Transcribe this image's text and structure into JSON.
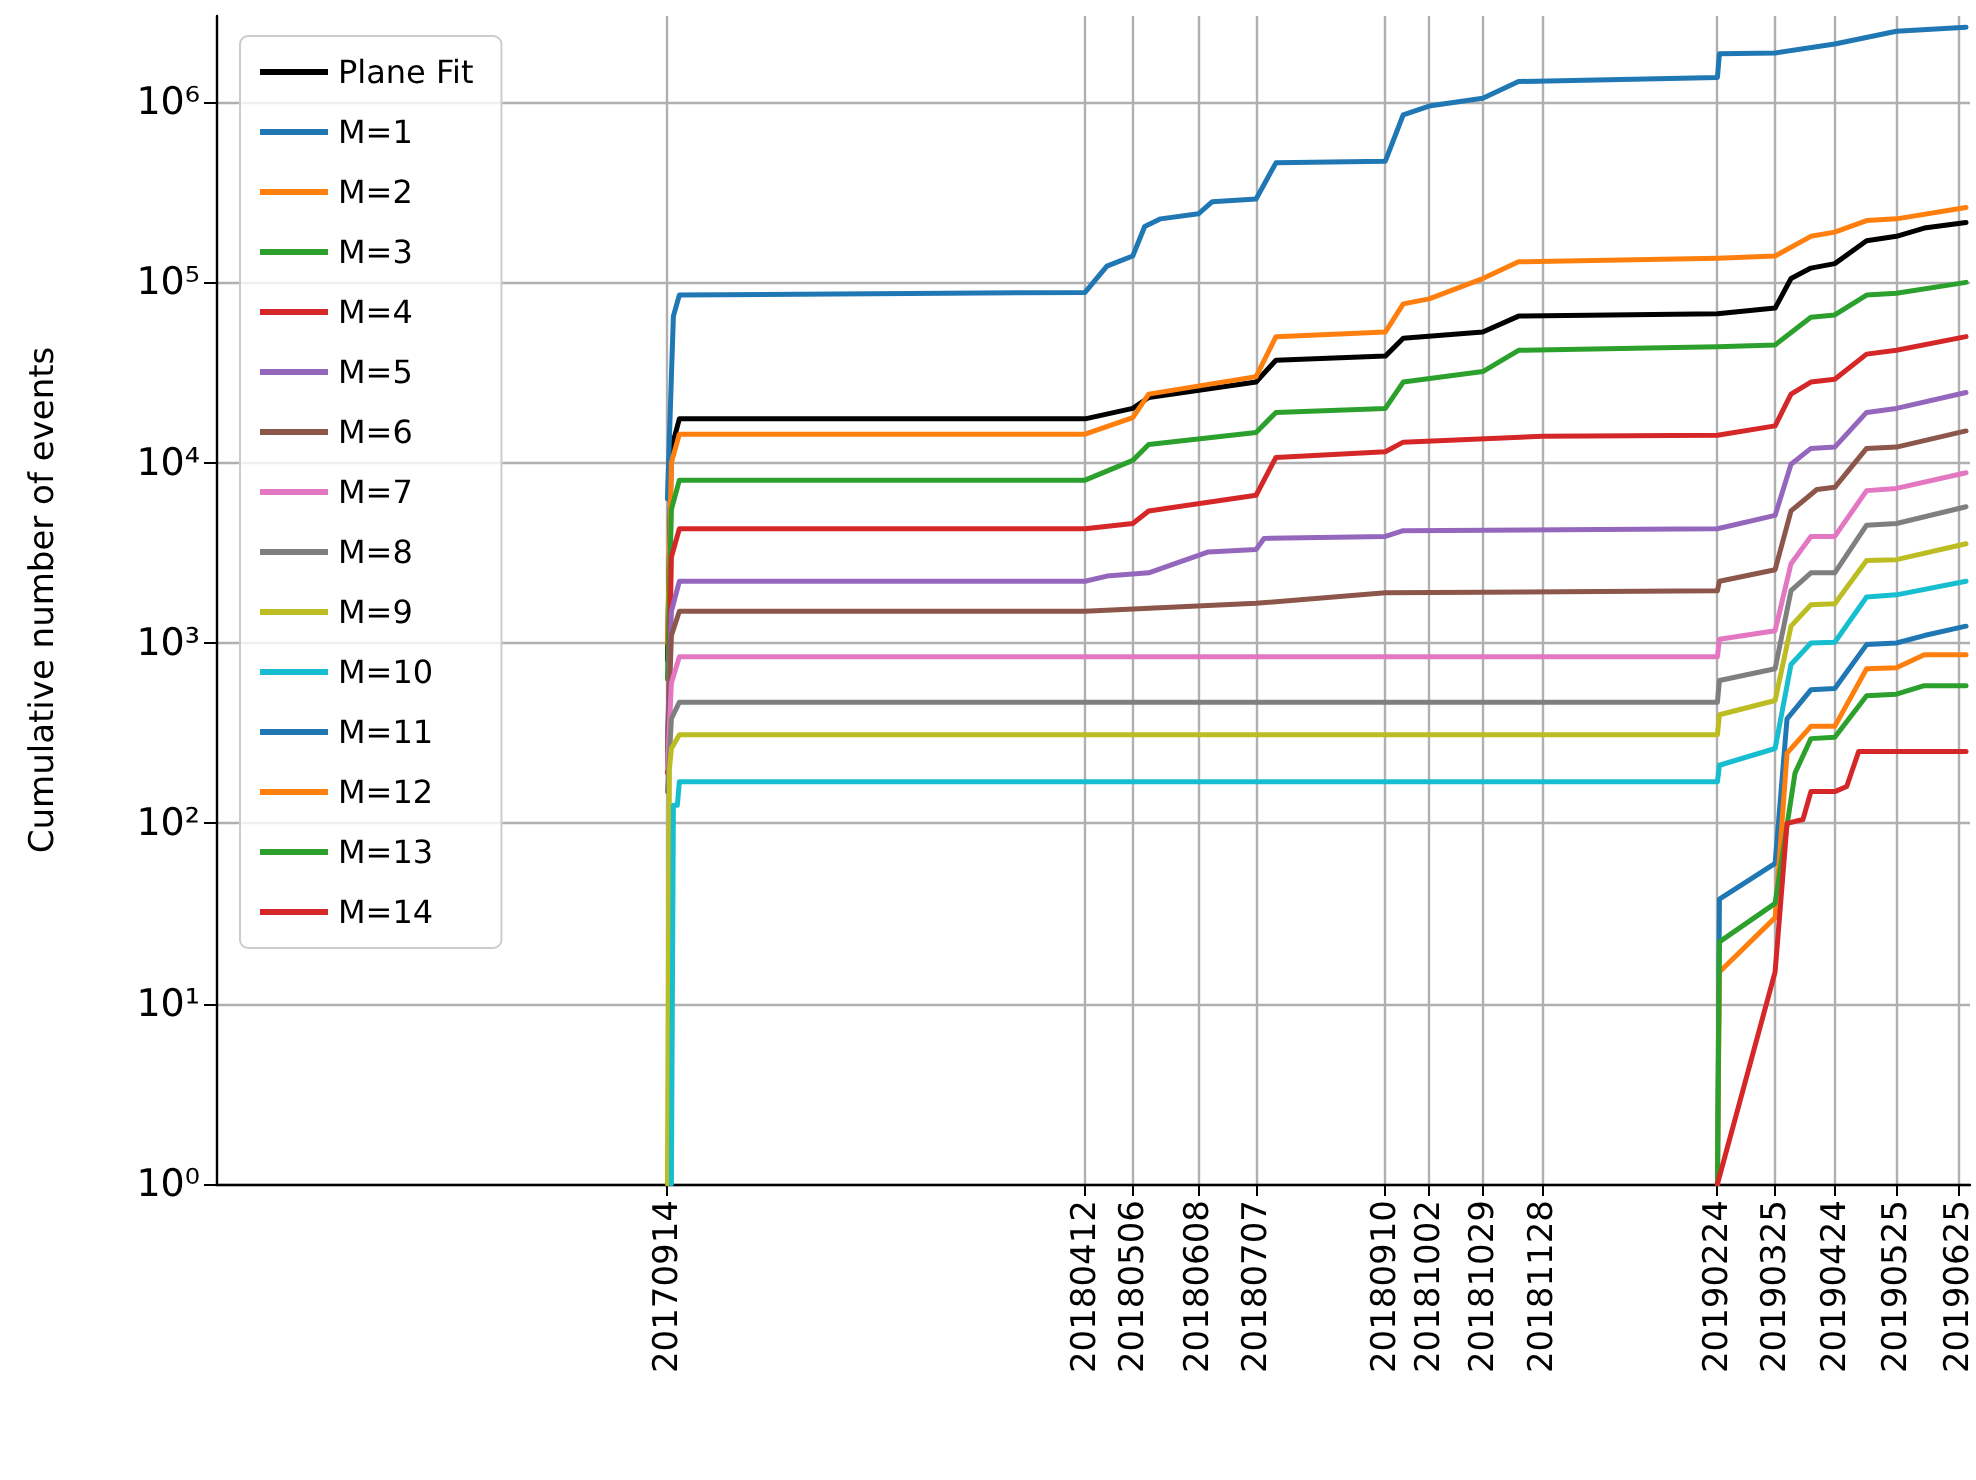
{
  "chart_data": {
    "type": "line",
    "ylabel": "Cumulative number of events",
    "log": "y",
    "grid": true,
    "legend": "top left",
    "marker": "none",
    "line_style": "solid",
    "xlim": [
      "2017-01-30",
      "2019-07-01"
    ],
    "xticks": [
      {
        "value": "2017-09-14",
        "label": "20170914"
      },
      {
        "value": "2018-04-12",
        "label": "20180412"
      },
      {
        "value": "2018-05-06",
        "label": "20180506"
      },
      {
        "value": "2018-06-08",
        "label": "20180608"
      },
      {
        "value": "2018-07-07",
        "label": "20180707"
      },
      {
        "value": "2018-09-10",
        "label": "20180910"
      },
      {
        "value": "2018-10-02",
        "label": "20181002"
      },
      {
        "value": "2018-10-29",
        "label": "20181029"
      },
      {
        "value": "2018-11-28",
        "label": "20181128"
      },
      {
        "value": "2019-02-24",
        "label": "20190224"
      },
      {
        "value": "2019-03-25",
        "label": "20190325"
      },
      {
        "value": "2019-04-24",
        "label": "20190424"
      },
      {
        "value": "2019-05-25",
        "label": "20190525"
      },
      {
        "value": "2019-06-25",
        "label": "20190625"
      }
    ],
    "ylim": [
      1,
      3000000
    ],
    "yticks": [
      {
        "value": 1,
        "label": "10⁰"
      },
      {
        "value": 10,
        "label": "10¹"
      },
      {
        "value": 100,
        "label": "10²"
      },
      {
        "value": 1000,
        "label": "10³"
      },
      {
        "value": 10000,
        "label": "10⁴"
      },
      {
        "value": 100000,
        "label": "10⁵"
      },
      {
        "value": 1000000,
        "label": "10⁶"
      }
    ],
    "series": [
      {
        "name": "Plane Fit",
        "color": "#000000",
        "x": [
          "2017-09-14",
          "2017-09-16",
          "2017-09-20",
          "2018-04-12",
          "2018-05-06",
          "2018-05-14",
          "2018-07-07",
          "2018-07-17",
          "2018-09-10",
          "2018-09-19",
          "2018-10-29",
          "2018-11-16",
          "2019-02-24",
          "2019-03-25",
          "2019-04-02",
          "2019-04-12",
          "2019-04-24",
          "2019-05-10",
          "2019-05-25",
          "2019-06-08",
          "2019-06-29"
        ],
        "values": [
          800,
          12000,
          17500,
          17500,
          20000,
          23000,
          28000,
          37000,
          39000,
          49000,
          53000,
          65000,
          67000,
          72000,
          105000,
          120000,
          127000,
          170000,
          180000,
          200000,
          215000
        ]
      },
      {
        "name": "M=1",
        "color": "#1f77b4",
        "x": [
          "2017-09-14",
          "2017-09-16",
          "2017-09-17",
          "2017-09-20",
          "2018-04-12",
          "2018-04-23",
          "2018-05-06",
          "2018-05-12",
          "2018-05-20",
          "2018-06-08",
          "2018-06-15",
          "2018-07-07",
          "2018-07-17",
          "2018-09-10",
          "2018-09-19",
          "2018-10-02",
          "2018-10-29",
          "2018-11-16",
          "2019-02-24",
          "2019-02-25",
          "2019-03-25",
          "2019-04-24",
          "2019-05-25",
          "2019-06-29"
        ],
        "values": [
          6300,
          30000,
          65000,
          85000,
          88000,
          123000,
          140000,
          204000,
          225000,
          240000,
          280000,
          290000,
          460000,
          470000,
          850000,
          950000,
          1050000,
          1300000,
          1370000,
          1850000,
          1870000,
          2100000,
          2470000,
          2600000
        ]
      },
      {
        "name": "M=2",
        "color": "#ff7f0e",
        "x": [
          "2017-09-14",
          "2017-09-16",
          "2017-09-20",
          "2018-04-12",
          "2018-05-06",
          "2018-05-14",
          "2018-07-07",
          "2018-07-17",
          "2018-09-10",
          "2018-09-19",
          "2018-10-02",
          "2018-10-29",
          "2018-11-16",
          "2019-02-24",
          "2019-03-25",
          "2019-04-12",
          "2019-04-24",
          "2019-05-10",
          "2019-05-25",
          "2019-06-29"
        ],
        "values": [
          1000,
          10000,
          14400,
          14400,
          17800,
          24000,
          30000,
          50000,
          53000,
          76000,
          81000,
          105000,
          130000,
          136000,
          140000,
          180000,
          190000,
          220000,
          225000,
          260000
        ]
      },
      {
        "name": "M=3",
        "color": "#2ca02c",
        "x": [
          "2017-09-14",
          "2017-09-16",
          "2017-09-20",
          "2018-04-12",
          "2018-05-06",
          "2018-05-14",
          "2018-07-07",
          "2018-07-17",
          "2018-09-10",
          "2018-09-19",
          "2018-10-29",
          "2018-11-16",
          "2019-02-24",
          "2019-03-25",
          "2019-04-12",
          "2019-04-24",
          "2019-05-10",
          "2019-05-25",
          "2019-06-29"
        ],
        "values": [
          630,
          5500,
          8000,
          8000,
          10300,
          12600,
          14700,
          19000,
          20000,
          28000,
          32000,
          42000,
          44000,
          45000,
          64000,
          66000,
          85000,
          87000,
          100000
        ]
      },
      {
        "name": "M=4",
        "color": "#d62728",
        "x": [
          "2017-09-14",
          "2017-09-16",
          "2017-09-20",
          "2018-04-12",
          "2018-05-06",
          "2018-05-14",
          "2018-07-07",
          "2018-07-17",
          "2018-09-10",
          "2018-09-19",
          "2018-11-28",
          "2019-02-24",
          "2019-03-25",
          "2019-04-02",
          "2019-04-12",
          "2019-04-24",
          "2019-05-10",
          "2019-05-25",
          "2019-06-29"
        ],
        "values": [
          190,
          3000,
          4300,
          4300,
          4600,
          5400,
          6600,
          10700,
          11500,
          13000,
          14000,
          14200,
          16000,
          24000,
          28000,
          29000,
          40000,
          42000,
          50000
        ]
      },
      {
        "name": "M=5",
        "color": "#9467bd",
        "x": [
          "2017-09-14",
          "2017-09-16",
          "2017-09-20",
          "2018-04-12",
          "2018-04-23",
          "2018-05-14",
          "2018-06-13",
          "2018-07-07",
          "2018-07-11",
          "2018-09-10",
          "2018-09-19",
          "2019-02-24",
          "2019-03-25",
          "2019-04-02",
          "2019-04-12",
          "2019-04-24",
          "2019-05-10",
          "2019-05-25",
          "2019-06-29"
        ],
        "values": [
          300,
          1500,
          2200,
          2200,
          2350,
          2450,
          3200,
          3300,
          3800,
          3900,
          4200,
          4300,
          5100,
          9800,
          12000,
          12200,
          19000,
          20000,
          24500
        ]
      },
      {
        "name": "M=6",
        "color": "#8c564b",
        "x": [
          "2017-09-14",
          "2017-09-16",
          "2017-09-20",
          "2018-04-12",
          "2018-07-07",
          "2018-09-10",
          "2019-02-24",
          "2019-02-25",
          "2019-03-25",
          "2019-04-02",
          "2019-04-15",
          "2019-04-24",
          "2019-05-10",
          "2019-05-25",
          "2019-06-29"
        ],
        "values": [
          250,
          1100,
          1500,
          1500,
          1660,
          1900,
          1950,
          2200,
          2550,
          5400,
          7100,
          7300,
          12000,
          12200,
          15000
        ]
      },
      {
        "name": "M=7",
        "color": "#e377c2",
        "x": [
          "2017-09-14",
          "2017-09-16",
          "2017-09-20",
          "2019-02-24",
          "2019-02-25",
          "2019-03-25",
          "2019-04-02",
          "2019-04-12",
          "2019-04-24",
          "2019-05-10",
          "2019-05-25",
          "2019-06-29"
        ],
        "values": [
          200,
          600,
          840,
          840,
          1050,
          1170,
          2750,
          3900,
          3900,
          7000,
          7200,
          8800
        ]
      },
      {
        "name": "M=8",
        "color": "#7f7f7f",
        "x": [
          "2017-09-14",
          "2017-09-16",
          "2017-09-20",
          "2019-02-24",
          "2019-02-25",
          "2019-03-25",
          "2019-04-02",
          "2019-04-12",
          "2019-04-24",
          "2019-05-10",
          "2019-05-25",
          "2019-06-29"
        ],
        "values": [
          150,
          380,
          470,
          470,
          620,
          720,
          1950,
          2450,
          2450,
          4500,
          4600,
          5700
        ]
      },
      {
        "name": "M=9",
        "color": "#bcbd22",
        "x": [
          "2017-09-14",
          "2017-09-15",
          "2017-09-16",
          "2017-09-20",
          "2019-02-24",
          "2019-02-25",
          "2019-03-25",
          "2019-04-02",
          "2019-04-12",
          "2019-04-24",
          "2019-05-10",
          "2019-05-25",
          "2019-06-29"
        ],
        "values": [
          1,
          200,
          260,
          310,
          310,
          400,
          480,
          1240,
          1630,
          1650,
          2870,
          2900,
          3550
        ]
      },
      {
        "name": "M=10",
        "color": "#17becf",
        "x": [
          "2017-09-16",
          "2017-09-17",
          "2017-09-19",
          "2017-09-20",
          "2019-02-24",
          "2019-02-25",
          "2019-03-25",
          "2019-04-02",
          "2019-04-12",
          "2019-04-24",
          "2019-05-10",
          "2019-05-25",
          "2019-06-29"
        ],
        "values": [
          1,
          126,
          126,
          170,
          170,
          210,
          260,
          760,
          1000,
          1010,
          1800,
          1850,
          2200
        ]
      },
      {
        "name": "M=11",
        "color": "#1f77b4",
        "x": [
          "2019-02-24",
          "2019-02-25",
          "2019-03-25",
          "2019-03-31",
          "2019-04-12",
          "2019-04-24",
          "2019-05-10",
          "2019-05-25",
          "2019-06-08",
          "2019-06-29"
        ],
        "values": [
          1,
          38,
          60,
          380,
          550,
          560,
          980,
          1000,
          1100,
          1240
        ]
      },
      {
        "name": "M=12",
        "color": "#ff7f0e",
        "x": [
          "2019-02-24",
          "2019-02-25",
          "2019-03-25",
          "2019-03-31",
          "2019-04-12",
          "2019-04-24",
          "2019-05-10",
          "2019-05-25",
          "2019-06-08",
          "2019-06-29"
        ],
        "values": [
          1,
          15,
          30,
          245,
          345,
          345,
          720,
          730,
          860,
          860
        ]
      },
      {
        "name": "M=13",
        "color": "#2ca02c",
        "x": [
          "2019-02-24",
          "2019-02-25",
          "2019-03-25",
          "2019-04-04",
          "2019-04-12",
          "2019-04-24",
          "2019-05-10",
          "2019-05-25",
          "2019-06-08",
          "2019-06-29"
        ],
        "values": [
          1,
          22,
          36,
          190,
          295,
          300,
          510,
          520,
          580,
          580
        ]
      },
      {
        "name": "M=14",
        "color": "#d62728",
        "x": [
          "2019-02-24",
          "2019-03-25",
          "2019-03-31",
          "2019-04-08",
          "2019-04-12",
          "2019-04-24",
          "2019-04-30",
          "2019-05-06",
          "2019-06-29"
        ],
        "values": [
          1,
          15,
          100,
          105,
          150,
          150,
          160,
          250,
          250
        ]
      }
    ]
  }
}
